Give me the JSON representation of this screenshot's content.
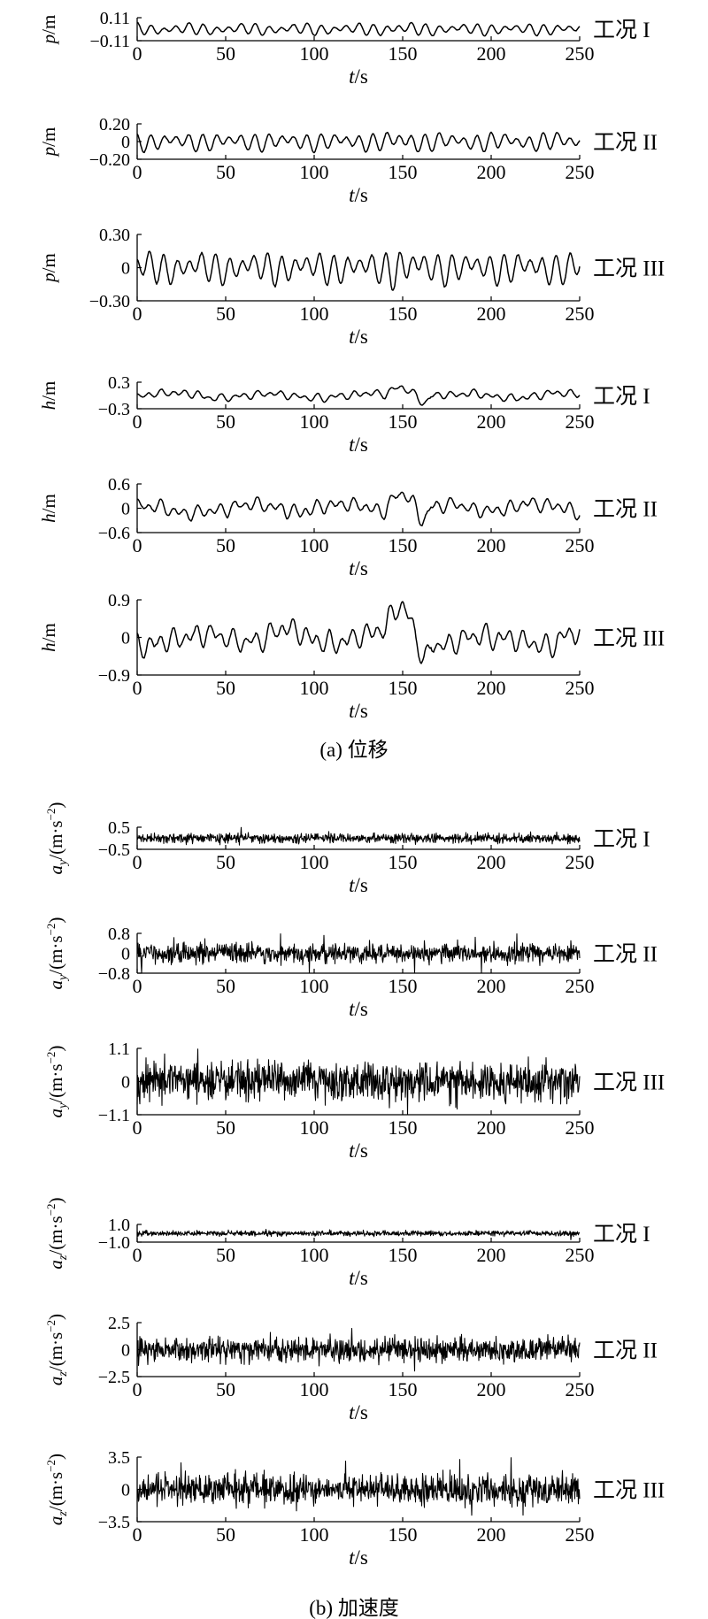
{
  "captions": {
    "a": "(a) 位移",
    "b": "(b) 加速度"
  },
  "chart_data": [
    {
      "type": "line",
      "group": "a",
      "ylabel_var": "p",
      "ylabel_rest": "/m",
      "ylabel_sub": "",
      "ylabel_sup": "",
      "xlabel": "t/s",
      "case_label": "工况 I",
      "yticks": [
        "0.11",
        "−0.11"
      ],
      "ylim": [
        -0.11,
        0.11
      ],
      "xlim": [
        0,
        250
      ],
      "xticks": [
        "0",
        "50",
        "100",
        "150",
        "200",
        "250"
      ],
      "signal": {
        "kind": "wave",
        "amp": 0.065,
        "seed": 11
      }
    },
    {
      "type": "line",
      "group": "a",
      "ylabel_var": "p",
      "ylabel_rest": "/m",
      "ylabel_sub": "",
      "ylabel_sup": "",
      "xlabel": "t/s",
      "case_label": "工况 II",
      "yticks": [
        "0.20",
        "0",
        "−0.20"
      ],
      "ylim": [
        -0.2,
        0.2
      ],
      "xlim": [
        0,
        250
      ],
      "xticks": [
        "0",
        "50",
        "100",
        "150",
        "200",
        "250"
      ],
      "signal": {
        "kind": "wave",
        "amp": 0.12,
        "seed": 23
      }
    },
    {
      "type": "line",
      "group": "a",
      "ylabel_var": "p",
      "ylabel_rest": "/m",
      "ylabel_sub": "",
      "ylabel_sup": "",
      "xlabel": "t/s",
      "case_label": "工况 III",
      "yticks": [
        "0.30",
        "0",
        "−0.30"
      ],
      "ylim": [
        -0.3,
        0.3
      ],
      "xlim": [
        0,
        250
      ],
      "xticks": [
        "0",
        "50",
        "100",
        "150",
        "200",
        "250"
      ],
      "signal": {
        "kind": "wave",
        "amp": 0.17,
        "seed": 37
      }
    },
    {
      "type": "line",
      "group": "a",
      "ylabel_var": "h",
      "ylabel_rest": "/m",
      "ylabel_sub": "",
      "ylabel_sup": "",
      "xlabel": "t/s",
      "case_label": "工况 I",
      "yticks": [
        "0.3",
        "−0.3"
      ],
      "ylim": [
        -0.3,
        0.3
      ],
      "xlim": [
        0,
        250
      ],
      "xticks": [
        "0",
        "50",
        "100",
        "150",
        "200",
        "250"
      ],
      "signal": {
        "kind": "heave",
        "amp": 0.16,
        "seed": 41
      }
    },
    {
      "type": "line",
      "group": "a",
      "ylabel_var": "h",
      "ylabel_rest": "/m",
      "ylabel_sub": "",
      "ylabel_sup": "",
      "xlabel": "t/s",
      "case_label": "工况 II",
      "yticks": [
        "0.6",
        "0",
        "−0.6"
      ],
      "ylim": [
        -0.6,
        0.6
      ],
      "xlim": [
        0,
        250
      ],
      "xticks": [
        "0",
        "50",
        "100",
        "150",
        "200",
        "250"
      ],
      "signal": {
        "kind": "heave",
        "amp": 0.32,
        "seed": 53
      }
    },
    {
      "type": "line",
      "group": "a",
      "ylabel_var": "h",
      "ylabel_rest": "/m",
      "ylabel_sub": "",
      "ylabel_sup": "",
      "xlabel": "t/s",
      "case_label": "工况 III",
      "yticks": [
        "0.9",
        "0",
        "−0.9"
      ],
      "ylim": [
        -0.9,
        0.9
      ],
      "xlim": [
        0,
        250
      ],
      "xticks": [
        "0",
        "50",
        "100",
        "150",
        "200",
        "250"
      ],
      "signal": {
        "kind": "heave",
        "amp": 0.5,
        "seed": 67
      }
    },
    {
      "type": "line",
      "group": "b",
      "ylabel_var": "a",
      "ylabel_rest": "/(m·s",
      "ylabel_sub": "y",
      "ylabel_sup": "−2",
      "xlabel": "t/s",
      "case_label": "工况 I",
      "yticks": [
        "0.5",
        "−0.5"
      ],
      "ylim": [
        -0.5,
        0.5
      ],
      "xlim": [
        0,
        250
      ],
      "xticks": [
        "0",
        "50",
        "100",
        "150",
        "200",
        "250"
      ],
      "signal": {
        "kind": "noise",
        "amp": 0.16,
        "seed": 71
      }
    },
    {
      "type": "line",
      "group": "b",
      "ylabel_var": "a",
      "ylabel_rest": "/(m·s",
      "ylabel_sub": "y",
      "ylabel_sup": "−2",
      "xlabel": "t/s",
      "case_label": "工况 II",
      "yticks": [
        "0.8",
        "0",
        "−0.8"
      ],
      "ylim": [
        -0.8,
        0.8
      ],
      "xlim": [
        0,
        250
      ],
      "xticks": [
        "0",
        "50",
        "100",
        "150",
        "200",
        "250"
      ],
      "signal": {
        "kind": "noise",
        "amp": 0.3,
        "seed": 83
      }
    },
    {
      "type": "line",
      "group": "b",
      "ylabel_var": "a",
      "ylabel_rest": "/(m·s",
      "ylabel_sub": "y",
      "ylabel_sup": "−2",
      "xlabel": "t/s",
      "case_label": "工况 III",
      "yticks": [
        "1.1",
        "0",
        "−1.1"
      ],
      "ylim": [
        -1.1,
        1.1
      ],
      "xlim": [
        0,
        250
      ],
      "xticks": [
        "0",
        "50",
        "100",
        "150",
        "200",
        "250"
      ],
      "signal": {
        "kind": "noise",
        "amp": 0.5,
        "seed": 97
      }
    },
    {
      "type": "line",
      "group": "b",
      "ylabel_var": "a",
      "ylabel_rest": "/(m·s",
      "ylabel_sub": "z",
      "ylabel_sup": "−2",
      "xlabel": "t/s",
      "case_label": "工况 I",
      "yticks": [
        "1.0",
        "−1.0"
      ],
      "ylim": [
        -1.0,
        1.0
      ],
      "xlim": [
        0,
        250
      ],
      "xticks": [
        "0",
        "50",
        "100",
        "150",
        "200",
        "250"
      ],
      "signal": {
        "kind": "noise",
        "amp": 0.22,
        "seed": 101
      }
    },
    {
      "type": "line",
      "group": "b",
      "ylabel_var": "a",
      "ylabel_rest": "/(m·s",
      "ylabel_sub": "z",
      "ylabel_sup": "−2",
      "xlabel": "t/s",
      "case_label": "工况 II",
      "yticks": [
        "2.5",
        "0",
        "−2.5"
      ],
      "ylim": [
        -2.5,
        2.5
      ],
      "xlim": [
        0,
        250
      ],
      "xticks": [
        "0",
        "50",
        "100",
        "150",
        "200",
        "250"
      ],
      "signal": {
        "kind": "noise",
        "amp": 0.85,
        "seed": 113
      }
    },
    {
      "type": "line",
      "group": "b",
      "ylabel_var": "a",
      "ylabel_rest": "/(m·s",
      "ylabel_sub": "z",
      "ylabel_sup": "−2",
      "xlabel": "t/s",
      "case_label": "工况 III",
      "yticks": [
        "3.5",
        "0",
        "−3.5"
      ],
      "ylim": [
        -3.5,
        3.5
      ],
      "xlim": [
        0,
        250
      ],
      "xticks": [
        "0",
        "50",
        "100",
        "150",
        "200",
        "250"
      ],
      "signal": {
        "kind": "noise",
        "amp": 1.25,
        "seed": 127
      }
    }
  ]
}
